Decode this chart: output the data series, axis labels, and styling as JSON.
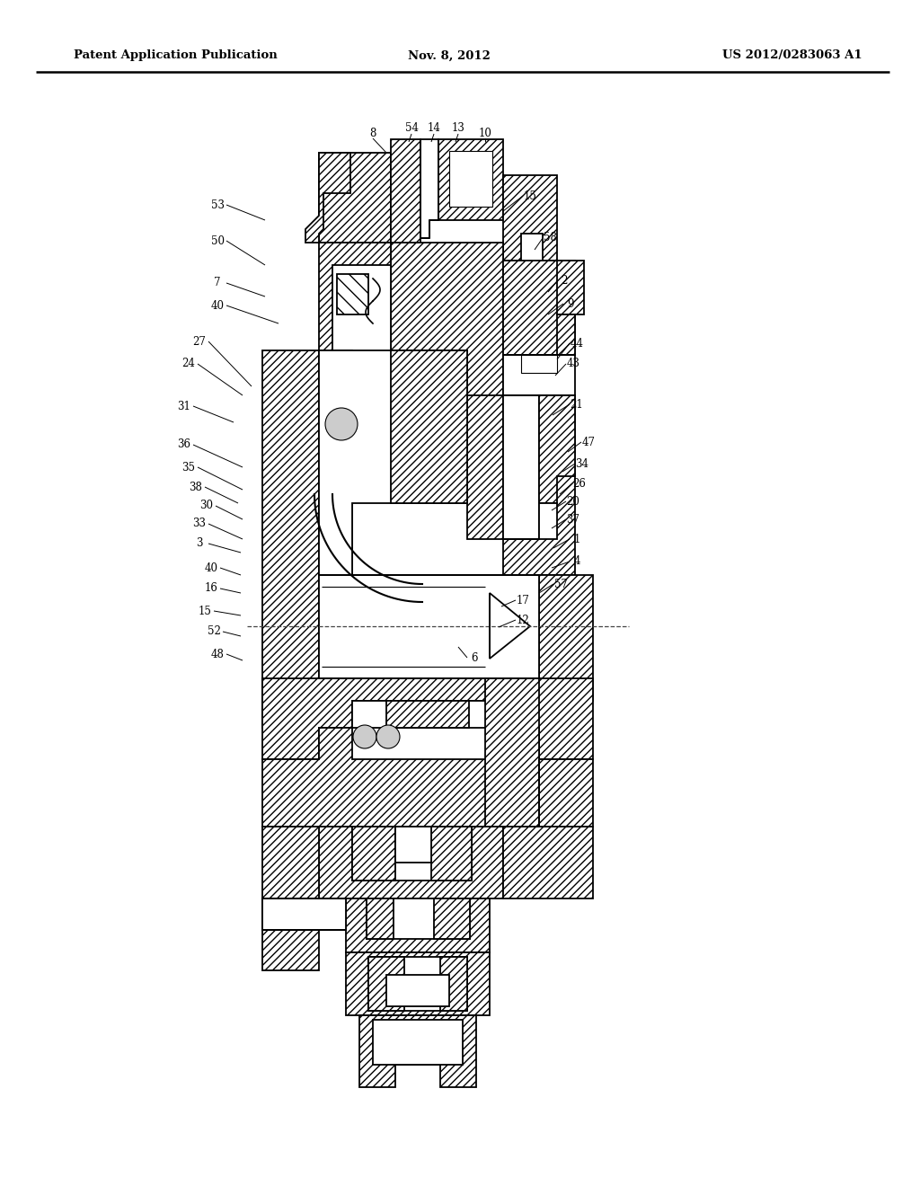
{
  "title_left": "Patent Application Publication",
  "title_center": "Nov. 8, 2012",
  "title_right": "US 2012/0283063 A1",
  "bg_color": "#ffffff",
  "fig_width": 10.24,
  "fig_height": 13.2,
  "labels_left": [
    [
      "53",
      248,
      228
    ],
    [
      "50",
      248,
      271
    ],
    [
      "7",
      248,
      318
    ],
    [
      "40",
      248,
      342
    ],
    [
      "27",
      226,
      388
    ],
    [
      "24",
      215,
      408
    ],
    [
      "31",
      210,
      455
    ],
    [
      "36",
      210,
      497
    ],
    [
      "35",
      214,
      520
    ],
    [
      "38",
      222,
      542
    ],
    [
      "30",
      235,
      563
    ],
    [
      "33",
      228,
      585
    ],
    [
      "3",
      228,
      608
    ],
    [
      "40",
      240,
      635
    ],
    [
      "16",
      240,
      659
    ],
    [
      "15",
      235,
      683
    ],
    [
      "52",
      245,
      707
    ],
    [
      "48",
      248,
      732
    ]
  ],
  "labels_right": [
    [
      "15",
      597,
      222
    ],
    [
      "58",
      618,
      270
    ],
    [
      "2",
      633,
      318
    ],
    [
      "9",
      640,
      342
    ],
    [
      "44",
      648,
      388
    ],
    [
      "43",
      645,
      408
    ],
    [
      "21",
      648,
      455
    ],
    [
      "47",
      662,
      497
    ],
    [
      "34",
      655,
      520
    ],
    [
      "26",
      652,
      542
    ],
    [
      "20",
      645,
      563
    ],
    [
      "37",
      645,
      585
    ],
    [
      "1",
      648,
      608
    ],
    [
      "4",
      648,
      635
    ],
    [
      "57",
      632,
      659
    ],
    [
      "17",
      590,
      672
    ],
    [
      "12",
      590,
      695
    ],
    [
      "6",
      535,
      735
    ]
  ],
  "labels_top": [
    [
      "8",
      418,
      148
    ],
    [
      "54",
      462,
      143
    ],
    [
      "14",
      490,
      143
    ],
    [
      "13",
      518,
      143
    ],
    [
      "10",
      548,
      148
    ]
  ]
}
